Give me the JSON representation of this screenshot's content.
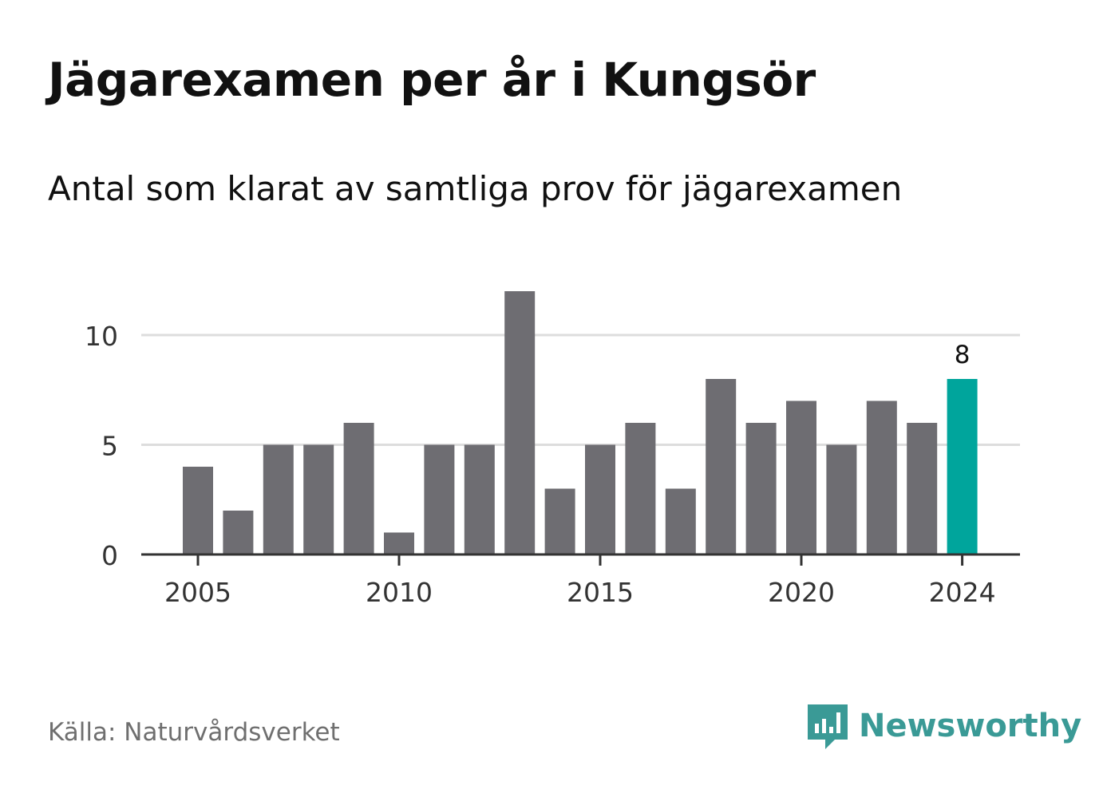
{
  "title": "Jägarexamen per år i Kungsör",
  "subtitle": "Antal som klarat av samtliga prov för jägarexamen",
  "source": "Källa: Naturvårdsverket",
  "brand": "Newsworthy",
  "colors": {
    "bar": "#6e6d72",
    "highlight": "#00a59c",
    "grid": "#dddddd",
    "axis": "#333333",
    "brand": "#3a9a96"
  },
  "chart_data": {
    "type": "bar",
    "categories": [
      2005,
      2006,
      2007,
      2008,
      2009,
      2010,
      2011,
      2012,
      2013,
      2014,
      2015,
      2016,
      2017,
      2018,
      2019,
      2020,
      2021,
      2022,
      2023,
      2024
    ],
    "values": [
      4,
      2,
      5,
      5,
      6,
      1,
      5,
      5,
      12,
      3,
      5,
      6,
      3,
      8,
      6,
      7,
      5,
      7,
      6,
      8
    ],
    "x_tick_labels": [
      "2005",
      "2010",
      "2015",
      "2020",
      "2024"
    ],
    "y_ticks": [
      0,
      5,
      10
    ],
    "ylim": [
      0,
      12
    ],
    "highlight_category": 2024,
    "highlight_label": "8",
    "grid": true
  }
}
